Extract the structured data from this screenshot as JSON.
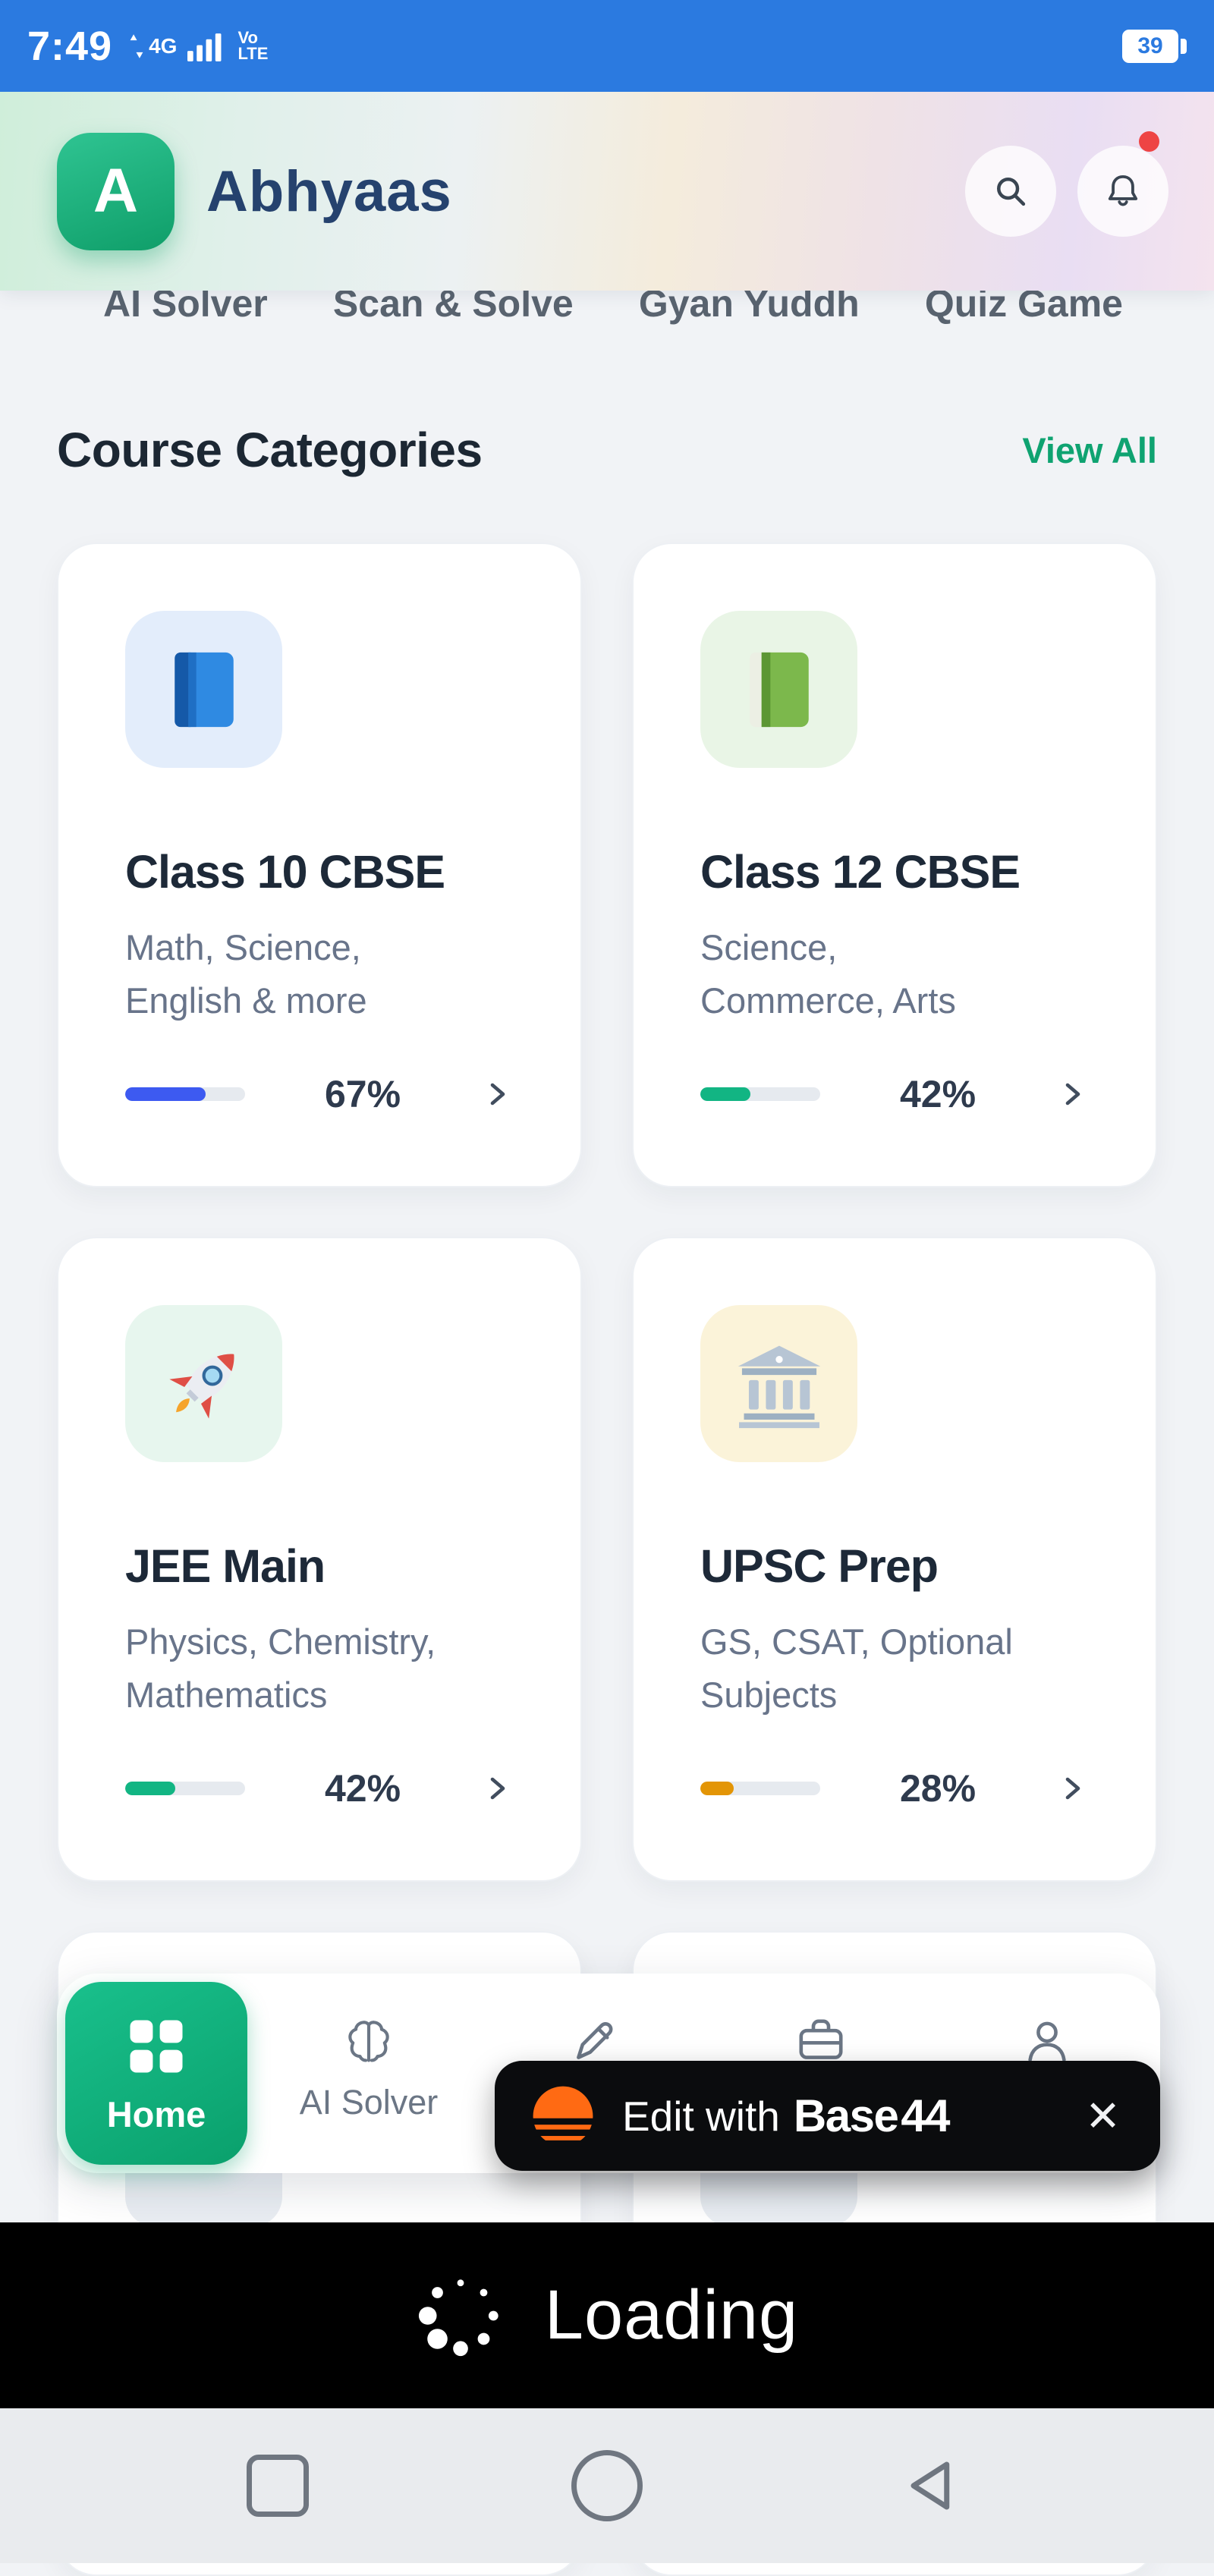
{
  "status_bar": {
    "time": "7:49",
    "network": "4G",
    "volte_line1": "Vo",
    "volte_line2": "LTE",
    "battery_level": "39"
  },
  "header": {
    "logo_letter": "A",
    "app_name": "Abhyaas"
  },
  "clipped_tabs": {
    "items": [
      {
        "label": "AI Solver"
      },
      {
        "label": "Scan & Solve"
      },
      {
        "label": "Gyan Yuddh"
      },
      {
        "label": "Quiz Game"
      }
    ]
  },
  "course_section": {
    "title": "Course Categories",
    "view_all_label": "View All"
  },
  "cards": [
    {
      "title": "Class 10 CBSE",
      "subtitle_line1": "Math, Science,",
      "subtitle_line2": "English & more",
      "progress_percent": 67,
      "progress_label": "67%",
      "progress_color": "#3d5af1",
      "icon": "blue-book",
      "icon_bg": "#e3edfb"
    },
    {
      "title": "Class 12 CBSE",
      "subtitle_line1": "Science,",
      "subtitle_line2": "Commerce, Arts",
      "progress_percent": 42,
      "progress_label": "42%",
      "progress_color": "#12b583",
      "icon": "green-book",
      "icon_bg": "#e9f5e6"
    },
    {
      "title": "JEE Main",
      "subtitle_line1": "Physics, Chemistry,",
      "subtitle_line2": "Mathematics",
      "progress_percent": 42,
      "progress_label": "42%",
      "progress_color": "#12b583",
      "icon": "rocket",
      "icon_bg": "#e7f6ee"
    },
    {
      "title": "UPSC Prep",
      "subtitle_line1": "GS, CSAT, Optional",
      "subtitle_line2": "Subjects",
      "progress_percent": 28,
      "progress_label": "28%",
      "progress_color": "#e39506",
      "icon": "bank",
      "icon_bg": "#fbf3d9"
    }
  ],
  "bottom_nav": {
    "home_label": "Home",
    "ai_solver_label": "AI Solver"
  },
  "base44_banner": {
    "prefix": "Edit with",
    "brand": "Base",
    "brand_suffix": "44",
    "close_glyph": "✕"
  },
  "loading_overlay": {
    "label": "Loading"
  }
}
